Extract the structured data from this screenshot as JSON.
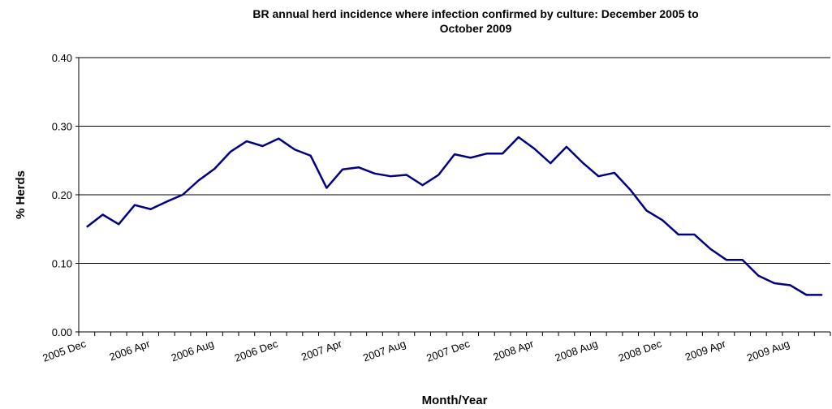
{
  "chart_data": {
    "type": "line",
    "title": "BR annual herd incidence where infection confirmed by culture: December 2005 to October 2009",
    "xlabel": "Month/Year",
    "ylabel": "% Herds",
    "categories": [
      "2005 Dec",
      null,
      null,
      null,
      "2006 Apr",
      null,
      null,
      null,
      "2006 Aug",
      null,
      null,
      null,
      "2006 Dec",
      null,
      null,
      null,
      "2007 Apr",
      null,
      null,
      null,
      "2007 Aug",
      null,
      null,
      null,
      "2007 Dec",
      null,
      null,
      null,
      "2008 Apr",
      null,
      null,
      null,
      "2008 Aug",
      null,
      null,
      null,
      "2008 Dec",
      null,
      null,
      null,
      "2009 Apr",
      null,
      null,
      null,
      "2009 Aug",
      null,
      null
    ],
    "values": [
      0.153,
      0.171,
      0.157,
      0.185,
      0.179,
      0.19,
      0.2,
      0.221,
      0.238,
      0.263,
      0.278,
      0.271,
      0.282,
      0.266,
      0.257,
      0.21,
      0.237,
      0.24,
      0.231,
      0.227,
      0.229,
      0.214,
      0.229,
      0.259,
      0.254,
      0.26,
      0.26,
      0.284,
      0.267,
      0.246,
      0.27,
      0.247,
      0.227,
      0.232,
      0.207,
      0.177,
      0.163,
      0.142,
      0.142,
      0.121,
      0.105,
      0.105,
      0.082,
      0.071,
      0.068,
      0.054,
      0.054
    ],
    "color": "#000080",
    "ylim": [
      0,
      0.4
    ],
    "yticks": [
      {
        "value": 0,
        "label": "0.00"
      },
      {
        "value": 0.1,
        "label": "0.10"
      },
      {
        "value": 0.2,
        "label": "0.20"
      },
      {
        "value": 0.3,
        "label": "0.30"
      },
      {
        "value": 0.4,
        "label": "0.40"
      }
    ],
    "grid": true
  }
}
